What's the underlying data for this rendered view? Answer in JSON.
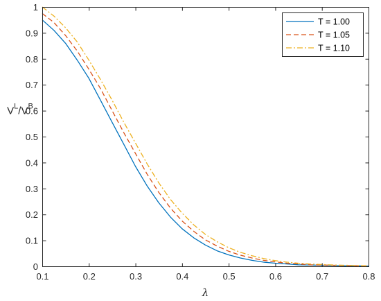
{
  "chart_data": {
    "type": "line",
    "title": "",
    "xlabel": "λ",
    "ylabel": {
      "main": "V",
      "sup1": "L",
      "sep": "/V",
      "sup2": "B"
    },
    "xlim": [
      0.1,
      0.8
    ],
    "ylim": [
      0,
      1
    ],
    "grid": false,
    "legend_position": "top-right",
    "xticks": [
      0.1,
      0.2,
      0.3,
      0.4,
      0.5,
      0.6,
      0.7,
      0.8
    ],
    "xtick_labels": [
      "0.1",
      "0.2",
      "0.3",
      "0.4",
      "0.5",
      "0.6",
      "0.7",
      "0.8"
    ],
    "yticks": [
      0,
      0.1,
      0.2,
      0.3,
      0.4,
      0.5,
      0.6,
      0.7,
      0.8,
      0.9,
      1
    ],
    "ytick_labels": [
      "0",
      "0.1",
      "0.2",
      "0.3",
      "0.4",
      "0.5",
      "0.6",
      "0.7",
      "0.8",
      "0.9",
      "1"
    ],
    "x": [
      0.1,
      0.125,
      0.15,
      0.175,
      0.2,
      0.225,
      0.25,
      0.275,
      0.3,
      0.325,
      0.35,
      0.375,
      0.4,
      0.425,
      0.45,
      0.475,
      0.5,
      0.525,
      0.55,
      0.575,
      0.6,
      0.625,
      0.65,
      0.675,
      0.7,
      0.725,
      0.75,
      0.775,
      0.8
    ],
    "series": [
      {
        "name": "T = 1.00",
        "color": "#0072BD",
        "dash": "solid",
        "values": [
          0.95,
          0.91,
          0.86,
          0.795,
          0.725,
          0.64,
          0.555,
          0.47,
          0.385,
          0.31,
          0.245,
          0.19,
          0.145,
          0.11,
          0.082,
          0.06,
          0.044,
          0.032,
          0.023,
          0.016,
          0.012,
          0.009,
          0.006,
          0.005,
          0.004,
          0.003,
          0.002,
          0.002,
          0.001
        ]
      },
      {
        "name": "T = 1.05",
        "color": "#D95319",
        "dash": "dashed",
        "values": [
          0.975,
          0.94,
          0.89,
          0.83,
          0.76,
          0.685,
          0.6,
          0.515,
          0.435,
          0.355,
          0.285,
          0.225,
          0.175,
          0.135,
          0.102,
          0.078,
          0.058,
          0.043,
          0.032,
          0.023,
          0.017,
          0.012,
          0.009,
          0.006,
          0.005,
          0.004,
          0.003,
          0.002,
          0.002
        ]
      },
      {
        "name": "T = 1.10",
        "color": "#EDB120",
        "dash": "dashdot",
        "values": [
          1.0,
          0.965,
          0.92,
          0.865,
          0.795,
          0.72,
          0.64,
          0.555,
          0.475,
          0.395,
          0.322,
          0.258,
          0.205,
          0.16,
          0.123,
          0.095,
          0.072,
          0.054,
          0.041,
          0.03,
          0.022,
          0.016,
          0.012,
          0.009,
          0.007,
          0.005,
          0.004,
          0.003,
          0.002
        ]
      }
    ]
  }
}
